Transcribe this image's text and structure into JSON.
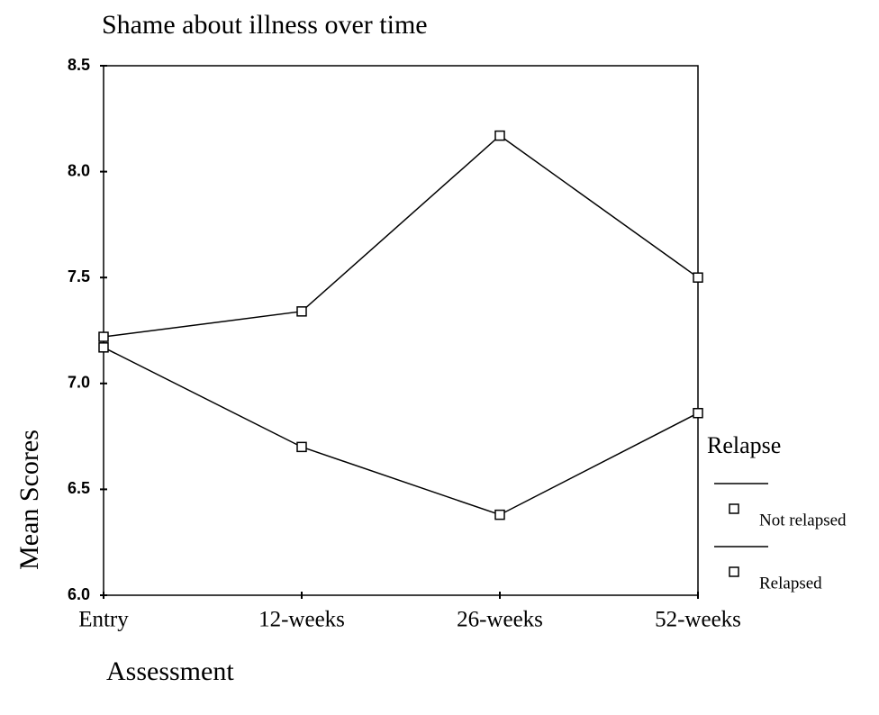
{
  "chart_data": {
    "type": "line",
    "title": "Shame about illness over time",
    "x_label": "Assessment",
    "y_label": "Mean Scores",
    "legend_title": "Relapse",
    "categories": [
      "Entry",
      "12-weeks",
      "26-weeks",
      "52-weeks"
    ],
    "series": [
      {
        "name": "Not relapsed",
        "color": "#000000",
        "values": [
          7.22,
          7.34,
          8.17,
          7.5
        ]
      },
      {
        "name": "Relapsed",
        "color": "#000000",
        "values": [
          7.17,
          6.7,
          6.38,
          6.86
        ]
      }
    ],
    "ylim": [
      6.0,
      8.5
    ],
    "yticks": [
      {
        "value": 6,
        "label": "6.0"
      },
      6.5,
      {
        "value": 7,
        "label": "7.0"
      },
      7.5,
      {
        "value": 8,
        "label": "8.0"
      },
      8.5
    ],
    "grid": false,
    "legend": "right"
  }
}
